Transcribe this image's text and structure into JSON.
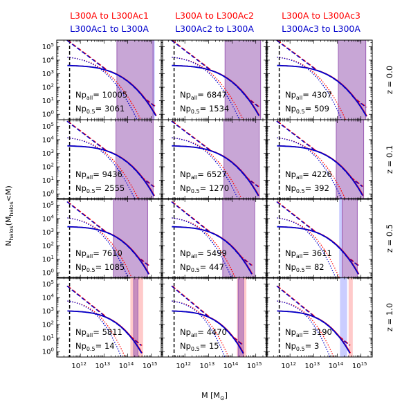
{
  "figure": {
    "xlabel": "M [M⊙]",
    "ylabel": "N_halos(M_halos<M)",
    "columns": [
      {
        "line1": "L300A to L300Ac1",
        "line2": "L300Ac1 to L300A"
      },
      {
        "line1": "L300A to L300Ac2",
        "line2": "L300Ac2 to L300A"
      },
      {
        "line1": "L300A to L300Ac3",
        "line2": "L300Ac3 to L300A"
      }
    ],
    "rows": [
      "z = 0.0",
      "z = 0.1",
      "z = 0.5",
      "z = 1.0"
    ],
    "colors": {
      "red": "#ff0000",
      "blue": "#0000cc",
      "purple": "#9a5cb4",
      "pink": "#ffb3b3",
      "lightblue": "#b3b8ff"
    },
    "x_ticks": [
      "10^12",
      "10^13",
      "10^14",
      "10^15"
    ],
    "y_ticks": [
      "10^0",
      "10^1",
      "10^2",
      "10^3",
      "10^4",
      "10^5"
    ]
  },
  "chart_data": {
    "type": "line",
    "x_scale": "log",
    "y_scale": "log",
    "xlim": [
      100000000000.0,
      3000000000000000.0
    ],
    "ylim": [
      0.4,
      300000
    ],
    "vline_x": 350000000000.0,
    "panels": [
      {
        "row": 0,
        "col": 0,
        "np_all": "10005",
        "np_05": "3061",
        "band_purple": [
          35000000000000.0,
          1200000000000000.0
        ],
        "band_red": null,
        "band_blue": [
          1100000000000000.0,
          1400000000000000.0
        ],
        "red_cut": 1600000000000000.0,
        "blue_cut": 1600000000000000.0,
        "solid_start": 4000,
        "dash_start": 250000,
        "dot_end": 500000000000000.0
      },
      {
        "row": 0,
        "col": 1,
        "np_all": "6847",
        "np_05": "1534",
        "band_purple": [
          50000000000000.0,
          1600000000000000.0
        ],
        "band_red": null,
        "band_blue": null,
        "red_cut": 1400000000000000.0,
        "blue_cut": 1400000000000000.0,
        "solid_start": 4000,
        "dash_start": 250000,
        "dot_end": 400000000000000.0
      },
      {
        "row": 0,
        "col": 2,
        "np_all": "4307",
        "np_05": "509",
        "band_purple": [
          110000000000000.0,
          1600000000000000.0
        ],
        "band_red": null,
        "band_blue": null,
        "red_cut": 1700000000000000.0,
        "blue_cut": 1700000000000000.0,
        "solid_start": 4000,
        "dash_start": 250000,
        "dot_end": 300000000000000.0
      },
      {
        "row": 1,
        "col": 0,
        "np_all": "9436",
        "np_05": "2555",
        "band_purple": [
          32000000000000.0,
          1200000000000000.0
        ],
        "band_red": null,
        "band_blue": null,
        "red_cut": 1300000000000000.0,
        "blue_cut": 1300000000000000.0,
        "solid_start": 3500,
        "dash_start": 200000,
        "dot_end": 400000000000000.0
      },
      {
        "row": 1,
        "col": 1,
        "np_all": "6527",
        "np_05": "1270",
        "band_purple": [
          45000000000000.0,
          1400000000000000.0
        ],
        "band_red": null,
        "band_blue": null,
        "red_cut": 1300000000000000.0,
        "blue_cut": 1300000000000000.0,
        "solid_start": 3500,
        "dash_start": 200000,
        "dot_end": 350000000000000.0
      },
      {
        "row": 1,
        "col": 2,
        "np_all": "4226",
        "np_05": "392",
        "band_purple": [
          90000000000000.0,
          1300000000000000.0
        ],
        "band_red": null,
        "band_blue": null,
        "red_cut": 1200000000000000.0,
        "blue_cut": 1200000000000000.0,
        "solid_start": 3500,
        "dash_start": 200000,
        "dot_end": 300000000000000.0
      },
      {
        "row": 2,
        "col": 0,
        "np_all": "7610",
        "np_05": "1085",
        "band_purple": [
          25000000000000.0,
          700000000000000.0
        ],
        "band_red": null,
        "band_blue": null,
        "red_cut": 800000000000000.0,
        "blue_cut": 800000000000000.0,
        "solid_start": 2500,
        "dash_start": 150000,
        "dot_end": 200000000000000.0
      },
      {
        "row": 2,
        "col": 1,
        "np_all": "5499",
        "np_05": "447",
        "band_purple": [
          40000000000000.0,
          900000000000000.0
        ],
        "band_red": null,
        "band_blue": null,
        "red_cut": 700000000000000.0,
        "blue_cut": 700000000000000.0,
        "solid_start": 2500,
        "dash_start": 150000,
        "dot_end": 180000000000000.0
      },
      {
        "row": 2,
        "col": 2,
        "np_all": "3611",
        "np_05": "82",
        "band_purple": [
          160000000000000.0,
          700000000000000.0
        ],
        "band_red": null,
        "band_blue": [
          120000000000000.0,
          160000000000000.0
        ],
        "red_cut": 800000000000000.0,
        "blue_cut": 800000000000000.0,
        "solid_start": 2500,
        "dash_start": 150000,
        "dot_end": 160000000000000.0
      },
      {
        "row": 3,
        "col": 0,
        "np_all": "5811",
        "np_05": "14",
        "band_purple": [
          180000000000000.0,
          270000000000000.0
        ],
        "band_red": [
          130000000000000.0,
          450000000000000.0
        ],
        "band_blue": null,
        "red_cut": 400000000000000.0,
        "blue_cut": 400000000000000.0,
        "solid_start": 1000,
        "dash_start": 60000,
        "dot_end": 100000000000000.0
      },
      {
        "row": 3,
        "col": 1,
        "np_all": "4470",
        "np_05": "15",
        "band_purple": [
          180000000000000.0,
          300000000000000.0
        ],
        "band_red": [
          160000000000000.0,
          400000000000000.0
        ],
        "band_blue": null,
        "red_cut": 300000000000000.0,
        "blue_cut": 300000000000000.0,
        "solid_start": 1000,
        "dash_start": 60000,
        "dot_end": 90000000000000.0
      },
      {
        "row": 3,
        "col": 2,
        "np_all": "3190",
        "np_05": "3",
        "band_purple": null,
        "band_red": [
          300000000000000.0,
          450000000000000.0
        ],
        "band_blue": [
          130000000000000.0,
          260000000000000.0
        ],
        "red_cut": 350000000000000.0,
        "blue_cut": 350000000000000.0,
        "solid_start": 1000,
        "dash_start": 60000,
        "dot_end": 90000000000000.0
      }
    ]
  }
}
